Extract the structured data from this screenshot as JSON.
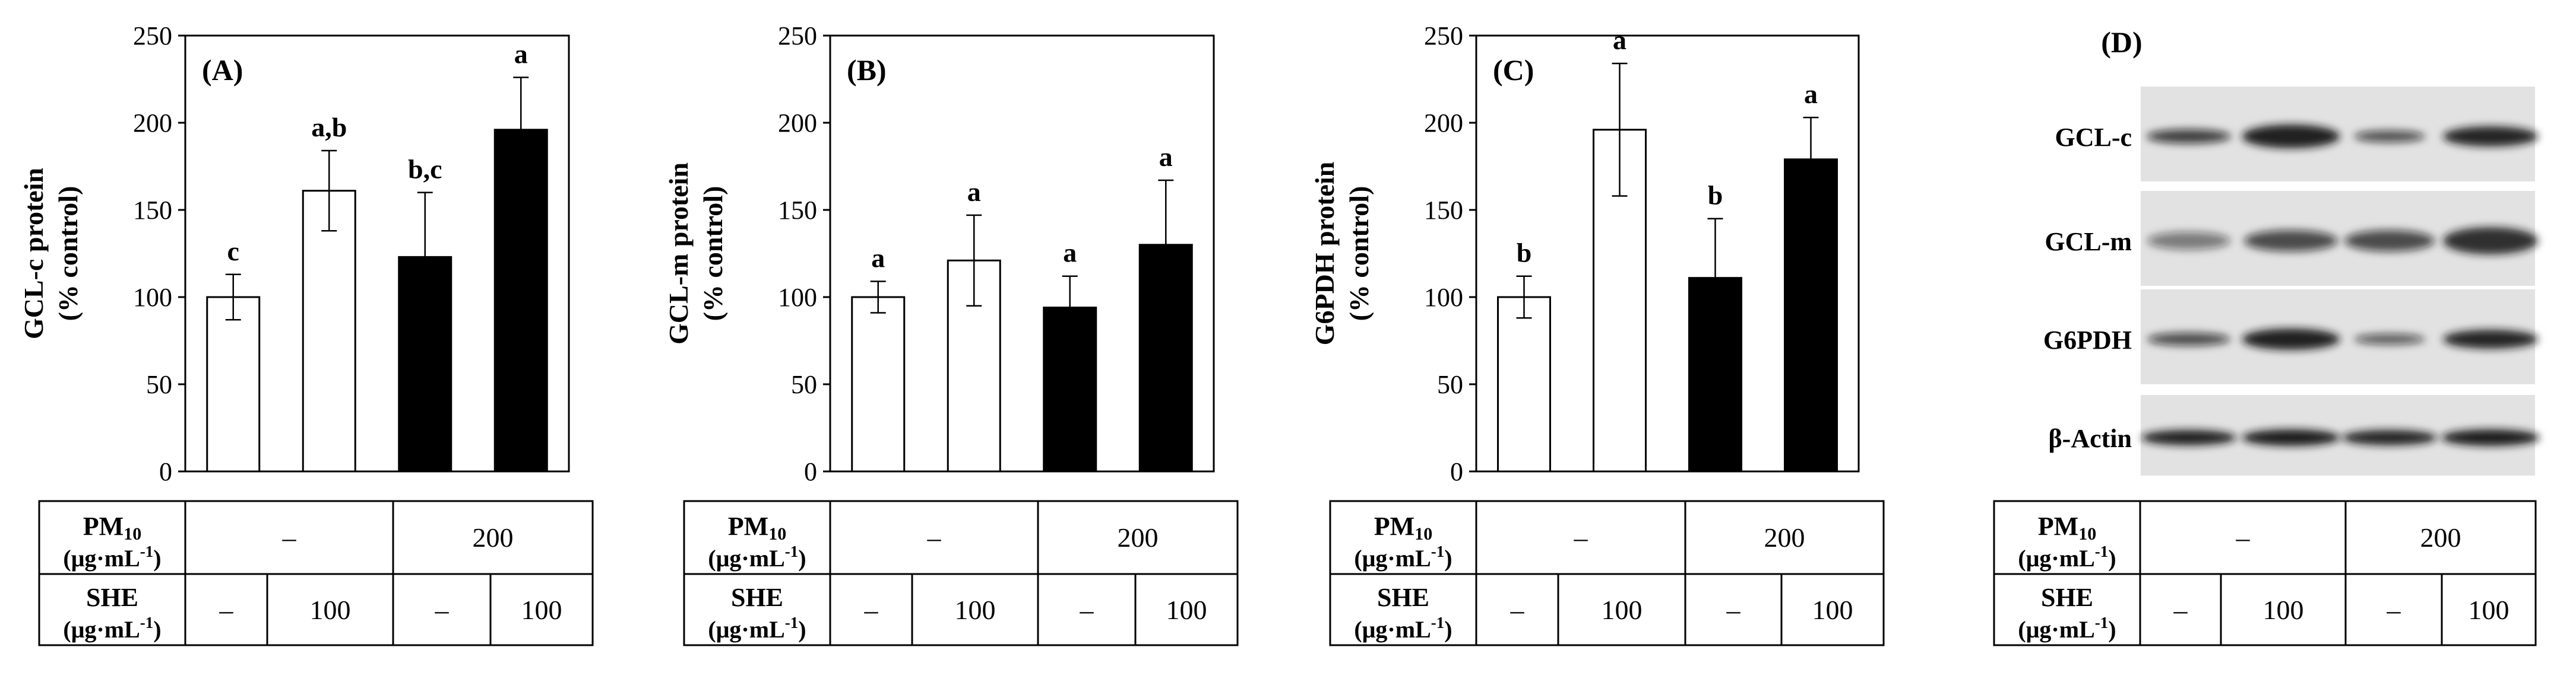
{
  "colors": {
    "open_bar": "#ffffff",
    "filled_bar": "#000000",
    "axis": "#000000"
  },
  "chart_data": [
    {
      "type": "bar",
      "panel_label": "(A)",
      "ylabel_line1": "GCL-c protein",
      "ylabel_line2": "(% control)",
      "ylim": [
        0,
        250
      ],
      "ticks": [
        "0",
        "50",
        "100",
        "150",
        "200",
        "250"
      ],
      "values": [
        100,
        161,
        123,
        196
      ],
      "errors": [
        13,
        23,
        37,
        30
      ],
      "fills": [
        "open",
        "open",
        "filled",
        "filled"
      ],
      "letters": [
        "c",
        "a,b",
        "b,c",
        "a"
      ],
      "table": {
        "pm_label": "PM",
        "pm_sub": "10",
        "unit": "(μg·mL",
        "unit_sup": "-1",
        "unit_end": ")",
        "pm_values": [
          "–",
          "200"
        ],
        "she_label": "SHE",
        "she_values": [
          "–",
          "100",
          "–",
          "100"
        ]
      }
    },
    {
      "type": "bar",
      "panel_label": "(B)",
      "ylabel_line1": "GCL-m protein",
      "ylabel_line2": "(% control)",
      "ylim": [
        0,
        250
      ],
      "ticks": [
        "0",
        "50",
        "100",
        "150",
        "200",
        "250"
      ],
      "values": [
        100,
        121,
        94,
        130
      ],
      "errors": [
        9,
        26,
        18,
        37
      ],
      "fills": [
        "open",
        "open",
        "filled",
        "filled"
      ],
      "letters": [
        "a",
        "a",
        "a",
        "a"
      ],
      "table": {
        "pm_label": "PM",
        "pm_sub": "10",
        "unit": "(μg·mL",
        "unit_sup": "-1",
        "unit_end": ")",
        "pm_values": [
          "–",
          "200"
        ],
        "she_label": "SHE",
        "she_values": [
          "–",
          "100",
          "–",
          "100"
        ]
      }
    },
    {
      "type": "bar",
      "panel_label": "(C)",
      "ylabel_line1": "G6PDH protein",
      "ylabel_line2": "(% control)",
      "ylim": [
        0,
        250
      ],
      "ticks": [
        "0",
        "50",
        "100",
        "150",
        "200",
        "250"
      ],
      "values": [
        100,
        196,
        111,
        179
      ],
      "errors": [
        12,
        38,
        34,
        24
      ],
      "fills": [
        "open",
        "open",
        "filled",
        "filled"
      ],
      "letters": [
        "b",
        "a",
        "b",
        "a"
      ],
      "table": {
        "pm_label": "PM",
        "pm_sub": "10",
        "unit": "(μg·mL",
        "unit_sup": "-1",
        "unit_end": ")",
        "pm_values": [
          "–",
          "200"
        ],
        "she_label": "SHE",
        "she_values": [
          "–",
          "100",
          "–",
          "100"
        ]
      }
    }
  ],
  "blot": {
    "panel_label": "(D)",
    "row_labels": [
      "GCL-c",
      "GCL-m",
      "G6PDH",
      "β-Actin"
    ],
    "table": {
      "pm_label": "PM",
      "pm_sub": "10",
      "unit": "(μg·mL",
      "unit_sup": "-1",
      "unit_end": ")",
      "pm_values": [
        "–",
        "200"
      ],
      "she_label": "SHE",
      "she_values": [
        "–",
        "100",
        "–",
        "100"
      ]
    }
  }
}
